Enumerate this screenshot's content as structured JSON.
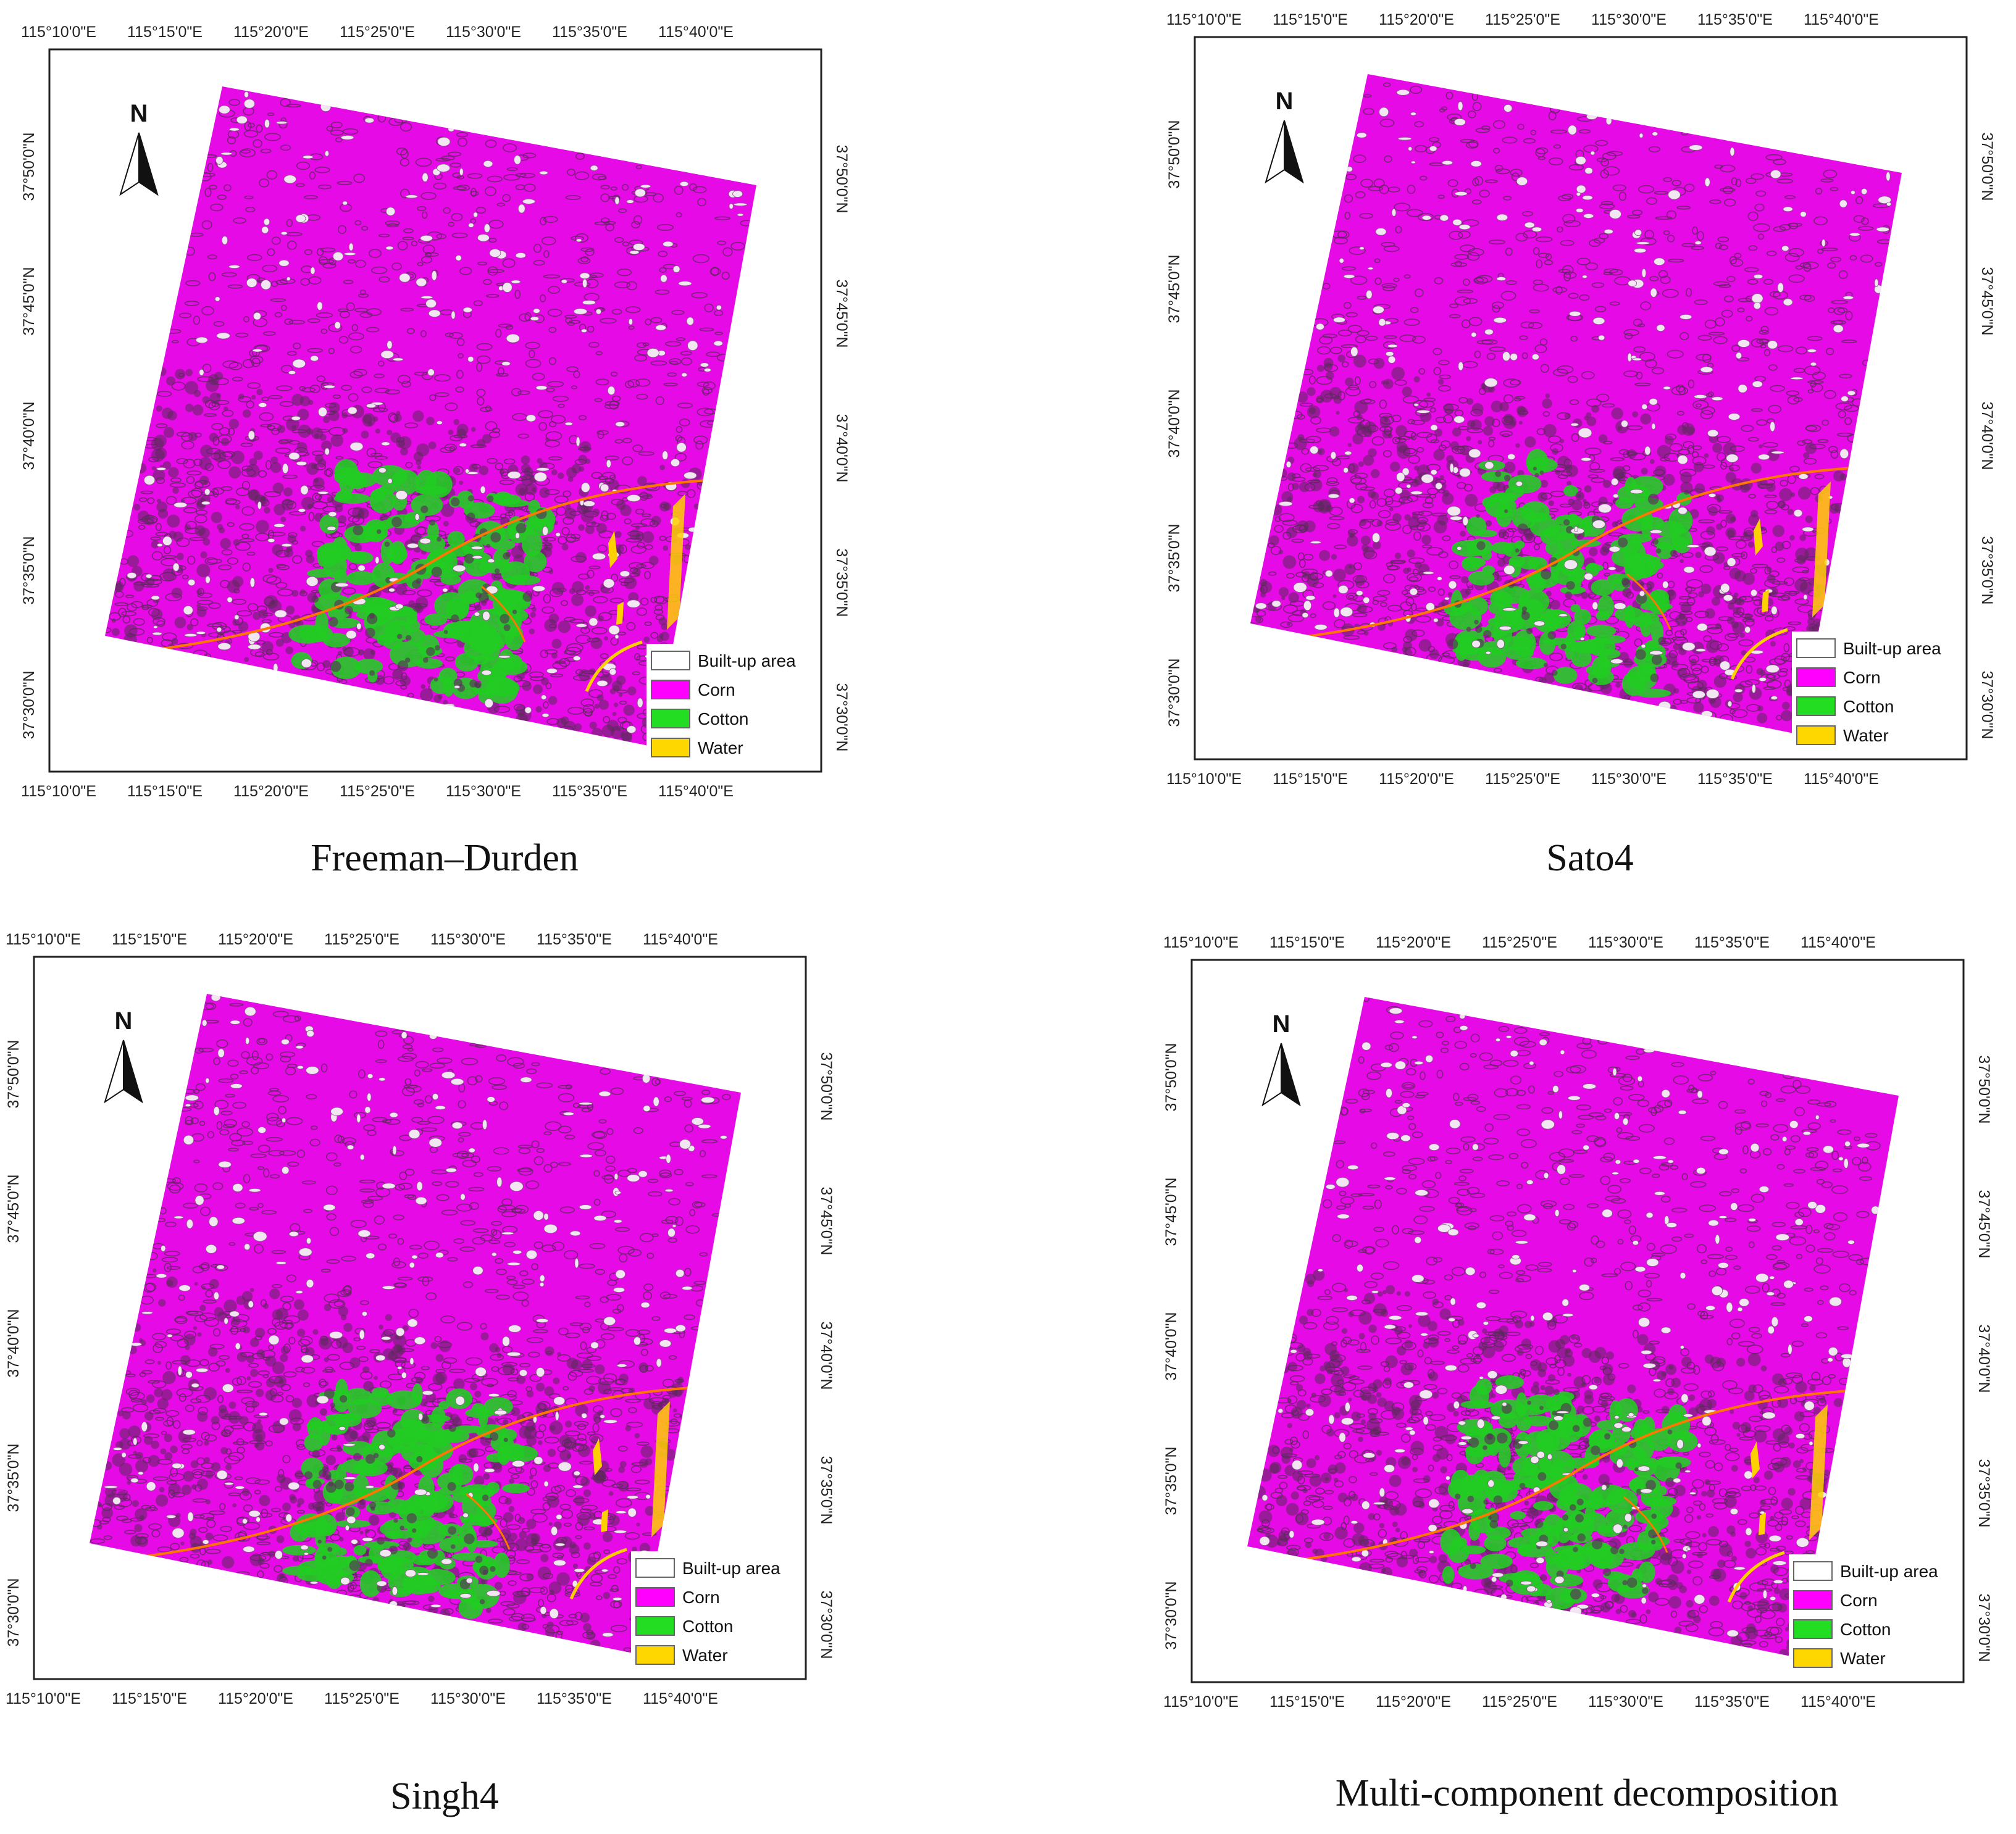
{
  "maps": [
    {
      "caption": "Freeman–Durden",
      "top_ticks": [
        "115°10'0\"E",
        "115°15'0\"E",
        "115°20'0\"E",
        "115°25'0\"E",
        "115°30'0\"E",
        "115°35'0\"E",
        "115°40'0\"E"
      ],
      "bottom_ticks": [
        "115°10'0\"E",
        "115°15'0\"E",
        "115°20'0\"E",
        "115°25'0\"E",
        "115°30'0\"E",
        "115°35'0\"E",
        "115°40'0\"E"
      ],
      "left_ticks": [
        "37°50'0\"N",
        "37°45'0\"N",
        "37°40'0\"N",
        "37°35'0\"N",
        "37°30'0\"N"
      ],
      "right_ticks": [
        "37°50'0\"N",
        "37°45'0\"N",
        "37°40'0\"N",
        "37°35'0\"N",
        "37°30'0\"N"
      ]
    },
    {
      "caption": "Sato4",
      "top_ticks": [
        "115°10'0\"E",
        "115°15'0\"E",
        "115°20'0\"E",
        "115°25'0\"E",
        "115°30'0\"E",
        "115°35'0\"E",
        "115°40'0\"E"
      ],
      "bottom_ticks": [
        "115°10'0\"E",
        "115°15'0\"E",
        "115°20'0\"E",
        "115°25'0\"E",
        "115°30'0\"E",
        "115°35'0\"E",
        "115°40'0\"E"
      ],
      "left_ticks": [
        "37°50'0\"N",
        "37°45'0\"N",
        "37°40'0\"N",
        "37°35'0\"N",
        "37°30'0\"N"
      ],
      "right_ticks": [
        "37°50'0\"N",
        "37°45'0\"N",
        "37°40'0\"N",
        "37°35'0\"N",
        "37°30'0\"N"
      ]
    },
    {
      "caption": "Singh4",
      "top_ticks": [
        "115°10'0\"E",
        "115°15'0\"E",
        "115°20'0\"E",
        "115°25'0\"E",
        "115°30'0\"E",
        "115°35'0\"E",
        "115°40'0\"E"
      ],
      "bottom_ticks": [
        "115°10'0\"E",
        "115°15'0\"E",
        "115°20'0\"E",
        "115°25'0\"E",
        "115°30'0\"E",
        "115°35'0\"E",
        "115°40'0\"E"
      ],
      "left_ticks": [
        "37°50'0\"N",
        "37°45'0\"N",
        "37°40'0\"N",
        "37°35'0\"N",
        "37°30'0\"N"
      ],
      "right_ticks": [
        "37°50'0\"N",
        "37°45'0\"N",
        "37°40'0\"N",
        "37°35'0\"N",
        "37°30'0\"N"
      ]
    },
    {
      "caption": "Multi-component decomposition",
      "top_ticks": [
        "115°10'0\"E",
        "115°15'0\"E",
        "115°20'0\"E",
        "115°25'0\"E",
        "115°30'0\"E",
        "115°35'0\"E",
        "115°40'0\"E"
      ],
      "bottom_ticks": [
        "115°10'0\"E",
        "115°15'0\"E",
        "115°20'0\"E",
        "115°25'0\"E",
        "115°30'0\"E",
        "115°35'0\"E",
        "115°40'0\"E"
      ],
      "left_ticks": [
        "37°50'0\"N",
        "37°45'0\"N",
        "37°40'0\"N",
        "37°35'0\"N",
        "37°30'0\"N"
      ],
      "right_ticks": [
        "37°50'0\"N",
        "37°45'0\"N",
        "37°40'0\"N",
        "37°35'0\"N",
        "37°30'0\"N"
      ]
    }
  ],
  "north_label": "N",
  "legend": [
    {
      "label": "Built-up area",
      "color": "#ffffff"
    },
    {
      "label": "Corn",
      "color": "#ff00ff"
    },
    {
      "label": "Cotton",
      "color": "#22dd22"
    },
    {
      "label": "Water",
      "color": "#ffd700"
    }
  ],
  "colors": {
    "corn": "#e60ae6",
    "texture": "#5a2a5a",
    "cotton": "#22cc22",
    "water": "#ffd000",
    "road": "#ff7700",
    "builtup": "#f2e6f2"
  }
}
